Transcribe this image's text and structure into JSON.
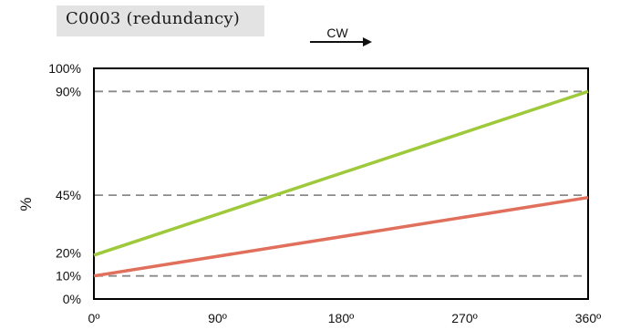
{
  "title": "C0003 (redundancy)",
  "direction_label": "CW",
  "colors": {
    "series_upper": "#9dc93a",
    "series_lower": "#e06f5c",
    "gridline": "#8a8a8a",
    "axis": "#000000",
    "title_bg": "#e3e3e3"
  },
  "chart_data": {
    "type": "line",
    "xlabel": "",
    "ylabel": "%",
    "xlim": [
      0,
      360
    ],
    "ylim": [
      0,
      100
    ],
    "x_ticks": [
      {
        "value": 0,
        "label": "0º"
      },
      {
        "value": 90,
        "label": "90º"
      },
      {
        "value": 180,
        "label": "180º"
      },
      {
        "value": 270,
        "label": "270º"
      },
      {
        "value": 360,
        "label": "360º"
      }
    ],
    "y_ticks": [
      {
        "value": 0,
        "label": "0%"
      },
      {
        "value": 10,
        "label": "10%"
      },
      {
        "value": 20,
        "label": "20%"
      },
      {
        "value": 45,
        "label": "45%"
      },
      {
        "value": 90,
        "label": "90%"
      },
      {
        "value": 100,
        "label": "100%"
      }
    ],
    "dashed_gridlines_at": [
      10,
      45,
      90
    ],
    "series": [
      {
        "color_key": "series_upper",
        "x": [
          0,
          360
        ],
        "y": [
          19,
          90
        ]
      },
      {
        "color_key": "series_lower",
        "x": [
          0,
          360
        ],
        "y": [
          10,
          44
        ]
      }
    ],
    "grid": "dashed horizontal at selected values"
  }
}
